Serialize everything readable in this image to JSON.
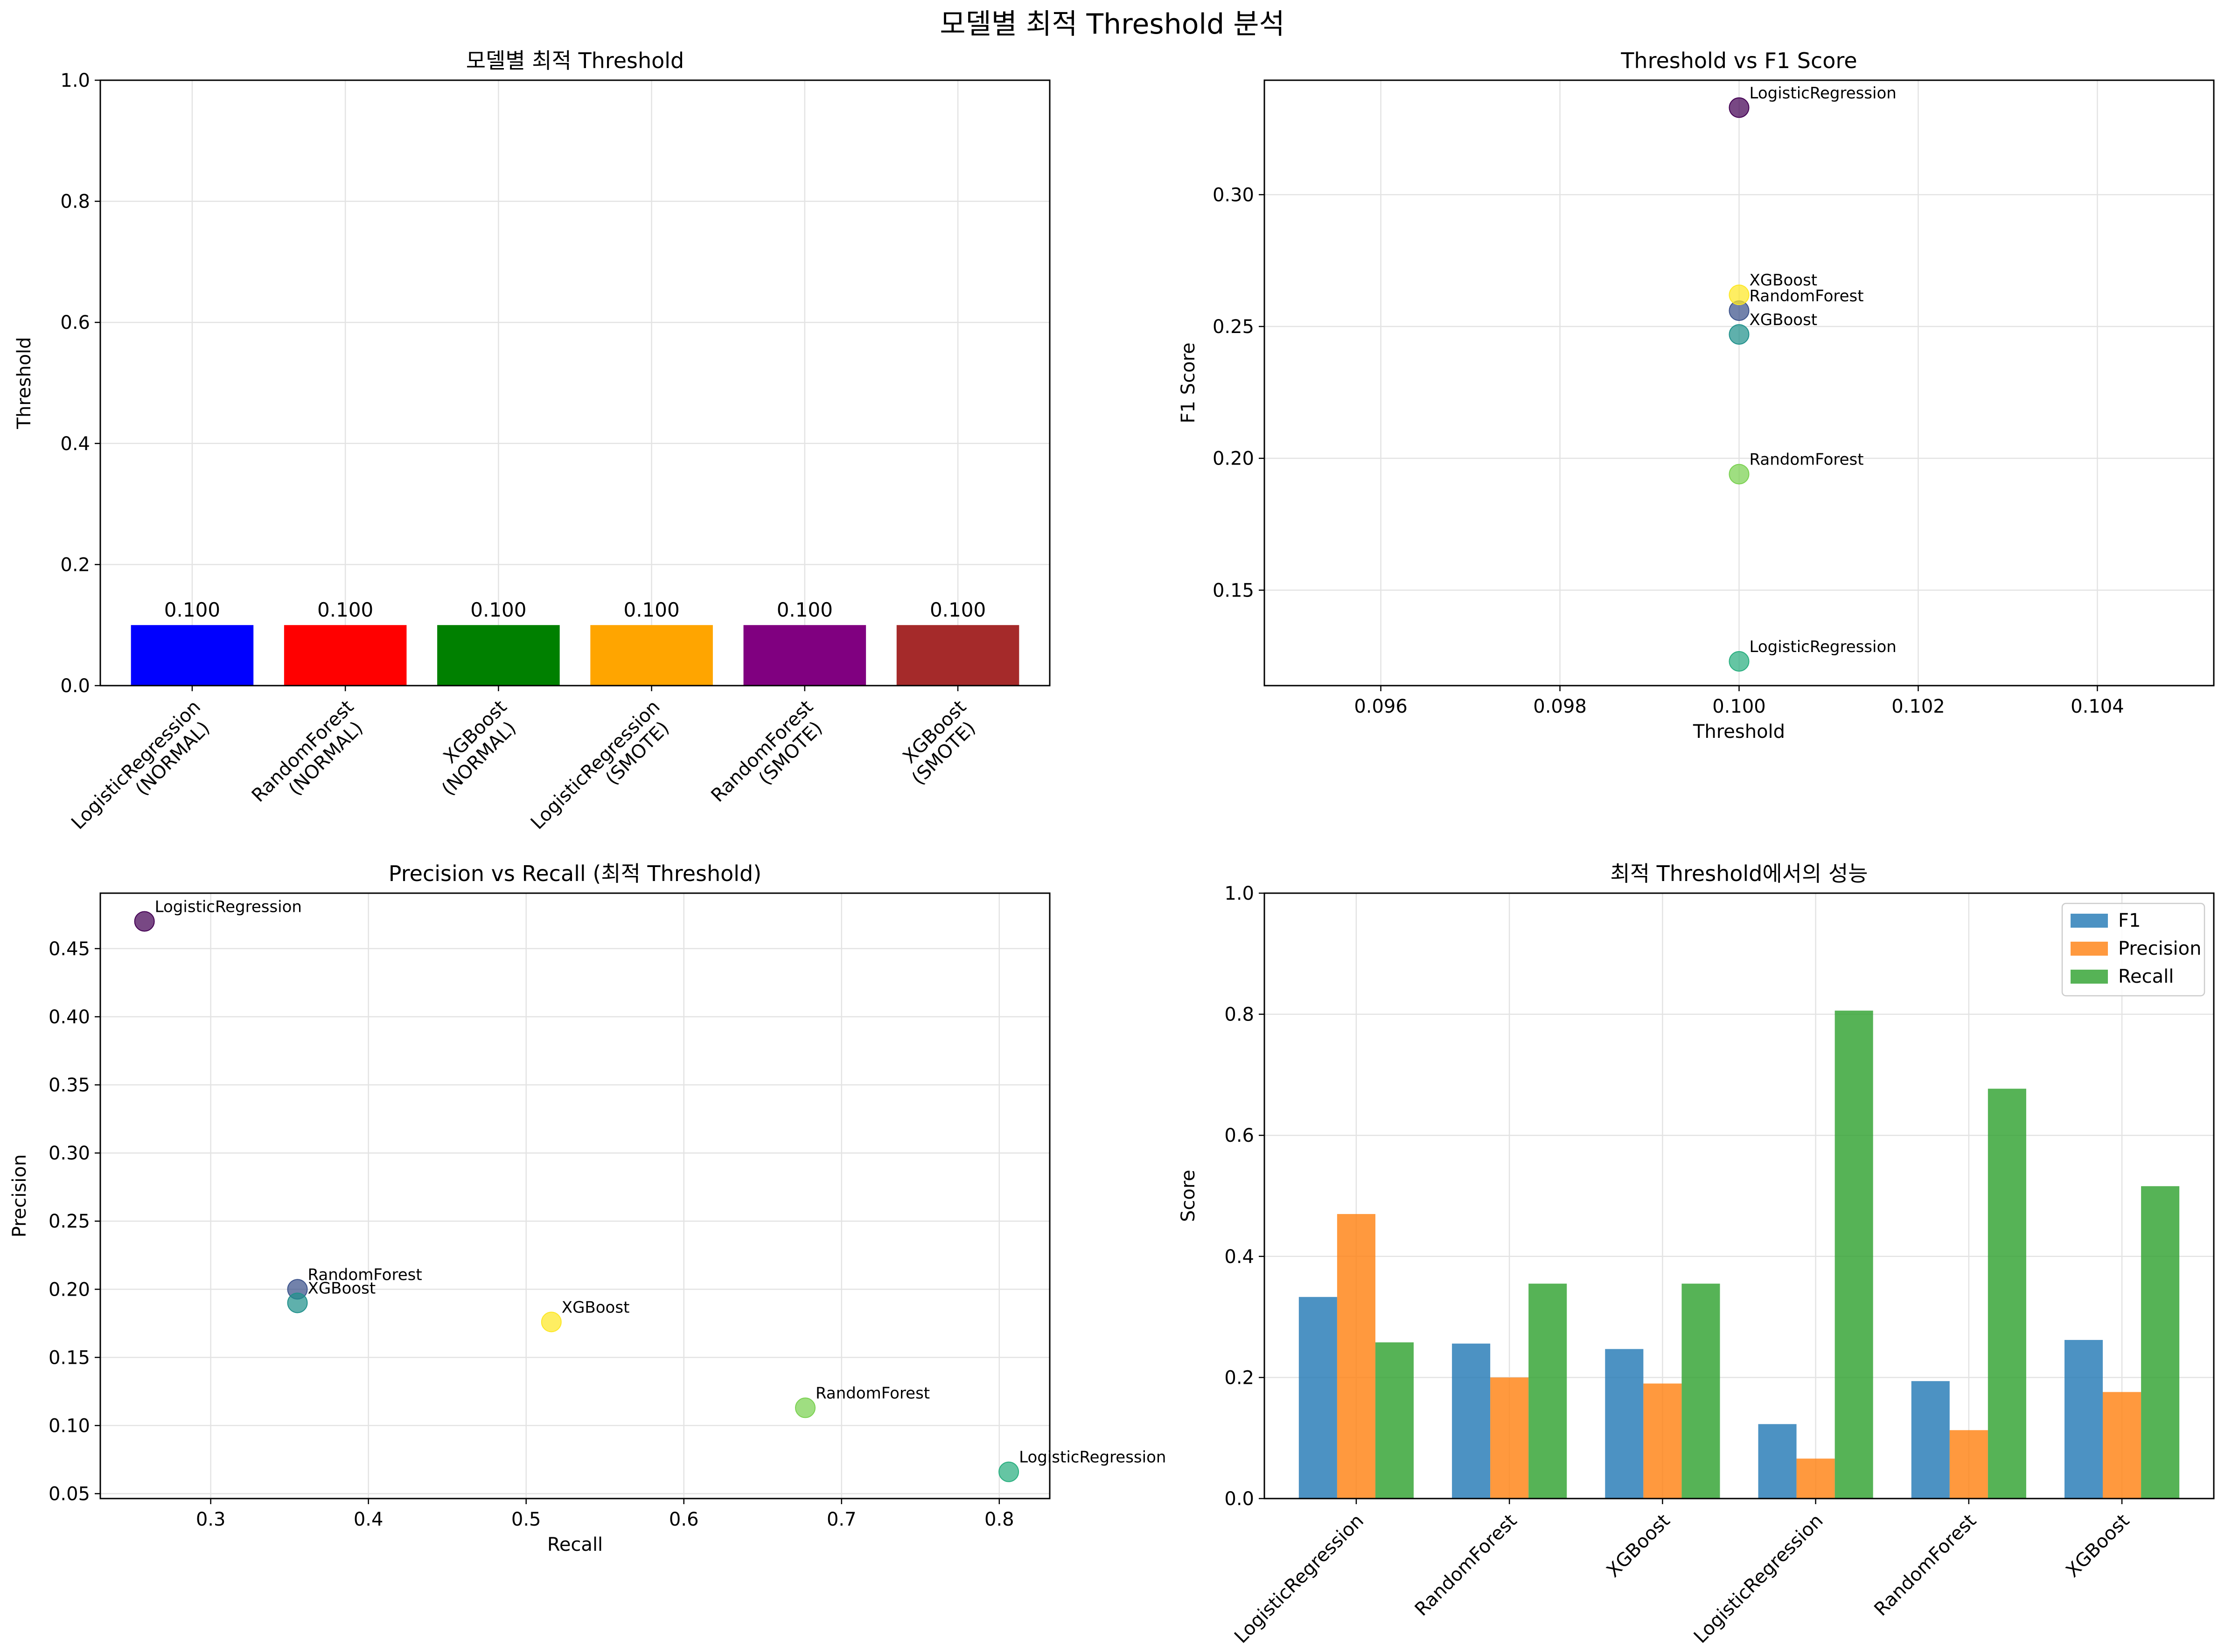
{
  "suptitle": "모델별 최적 Threshold 분석",
  "chart_data": [
    {
      "type": "bar",
      "title": "모델별 최적 Threshold",
      "xlabel": "",
      "ylabel": "Threshold",
      "ylim": [
        0,
        1.0
      ],
      "yticks": [
        "0.0",
        "0.2",
        "0.4",
        "0.6",
        "0.8",
        "1.0"
      ],
      "grid": true,
      "categories": [
        [
          "LogisticRegression",
          "(NORMAL)"
        ],
        [
          "RandomForest",
          "(NORMAL)"
        ],
        [
          "XGBoost",
          "(NORMAL)"
        ],
        [
          "LogisticRegression",
          "(SMOTE)"
        ],
        [
          "RandomForest",
          "(SMOTE)"
        ],
        [
          "XGBoost",
          "(SMOTE)"
        ]
      ],
      "values": [
        0.1,
        0.1,
        0.1,
        0.1,
        0.1,
        0.1
      ],
      "value_labels": [
        "0.100",
        "0.100",
        "0.100",
        "0.100",
        "0.100",
        "0.100"
      ],
      "colors": [
        "#0000ff",
        "#ff0000",
        "#008000",
        "#ffa500",
        "#800080",
        "#a52a2a"
      ]
    },
    {
      "type": "scatter",
      "title": "Threshold vs F1 Score",
      "xlabel": "Threshold",
      "ylabel": "F1 Score",
      "xlim": [
        0.0947,
        0.1053
      ],
      "ylim": [
        0.1138,
        0.3434
      ],
      "xticks": [
        "0.096",
        "0.098",
        "0.100",
        "0.102",
        "0.104"
      ],
      "yticks": [
        "0.15",
        "0.20",
        "0.25",
        "0.30"
      ],
      "grid": true,
      "points": [
        {
          "label": "LogisticRegression",
          "x": 0.1,
          "y": 0.333,
          "color": "#440154"
        },
        {
          "label": "RandomForest",
          "x": 0.1,
          "y": 0.256,
          "color": "#3b528b"
        },
        {
          "label": "XGBoost",
          "x": 0.1,
          "y": 0.247,
          "color": "#21918c"
        },
        {
          "label": "LogisticRegression",
          "x": 0.1,
          "y": 0.123,
          "color": "#29af7f"
        },
        {
          "label": "RandomForest",
          "x": 0.1,
          "y": 0.194,
          "color": "#7ad151"
        },
        {
          "label": "XGBoost",
          "x": 0.1,
          "y": 0.262,
          "color": "#fde725"
        }
      ]
    },
    {
      "type": "scatter",
      "title": "Precision vs Recall (최적 Threshold)",
      "xlabel": "Recall",
      "ylabel": "Precision",
      "xlim": [
        0.23,
        0.832
      ],
      "ylim": [
        0.0464,
        0.4907
      ],
      "xticks": [
        "0.3",
        "0.4",
        "0.5",
        "0.6",
        "0.7",
        "0.8"
      ],
      "yticks": [
        "0.05",
        "0.10",
        "0.15",
        "0.20",
        "0.25",
        "0.30",
        "0.35",
        "0.40",
        "0.45"
      ],
      "grid": true,
      "points": [
        {
          "label": "LogisticRegression",
          "x": 0.258,
          "y": 0.47,
          "color": "#440154"
        },
        {
          "label": "RandomForest",
          "x": 0.355,
          "y": 0.2,
          "color": "#3b528b"
        },
        {
          "label": "XGBoost",
          "x": 0.355,
          "y": 0.19,
          "color": "#21918c"
        },
        {
          "label": "LogisticRegression",
          "x": 0.806,
          "y": 0.066,
          "color": "#29af7f"
        },
        {
          "label": "RandomForest",
          "x": 0.677,
          "y": 0.113,
          "color": "#7ad151"
        },
        {
          "label": "XGBoost",
          "x": 0.516,
          "y": 0.176,
          "color": "#fde725"
        }
      ]
    },
    {
      "type": "bar",
      "title": "최적 Threshold에서의 성능",
      "xlabel": "",
      "ylabel": "Score",
      "ylim": [
        0,
        1.0
      ],
      "yticks": [
        "0.0",
        "0.2",
        "0.4",
        "0.6",
        "0.8",
        "1.0"
      ],
      "grid": true,
      "legend_position": "top-right",
      "categories": [
        "LogisticRegression",
        "RandomForest",
        "XGBoost",
        "LogisticRegression",
        "RandomForest",
        "XGBoost"
      ],
      "series": [
        {
          "name": "F1",
          "color": "#1f77b4",
          "values": [
            0.333,
            0.256,
            0.247,
            0.123,
            0.194,
            0.262
          ]
        },
        {
          "name": "Precision",
          "color": "#ff7f0e",
          "values": [
            0.47,
            0.2,
            0.19,
            0.066,
            0.113,
            0.176
          ]
        },
        {
          "name": "Recall",
          "color": "#2ca02c",
          "values": [
            0.258,
            0.355,
            0.355,
            0.806,
            0.677,
            0.516
          ]
        }
      ]
    }
  ]
}
